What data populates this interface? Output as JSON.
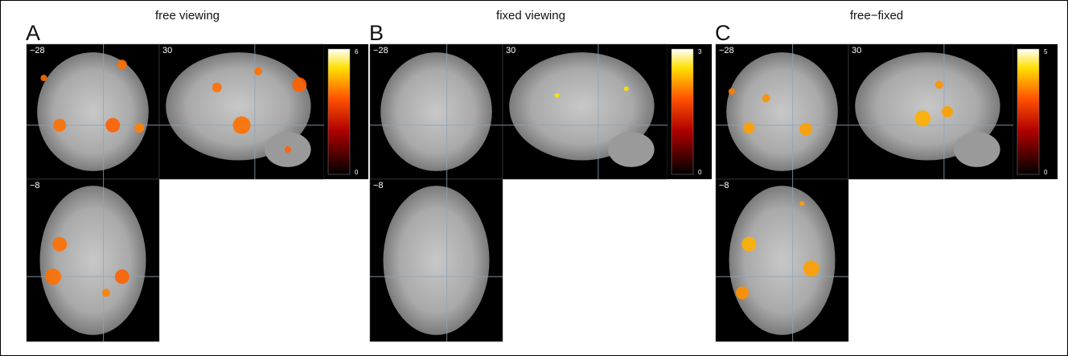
{
  "panels": [
    {
      "letter": "A",
      "title": "free viewing",
      "slices": [
        "−28",
        "30",
        "−8"
      ],
      "colorbar": {
        "max": "6",
        "min": "0"
      }
    },
    {
      "letter": "B",
      "title": "fixed viewing",
      "slices": [
        "−28",
        "30",
        "−8"
      ],
      "colorbar": {
        "max": "3",
        "min": "0"
      }
    },
    {
      "letter": "C",
      "title": "free−fixed",
      "slices": [
        "−28",
        "30",
        "−8"
      ],
      "colorbar": {
        "max": "5",
        "min": "0"
      }
    }
  ]
}
